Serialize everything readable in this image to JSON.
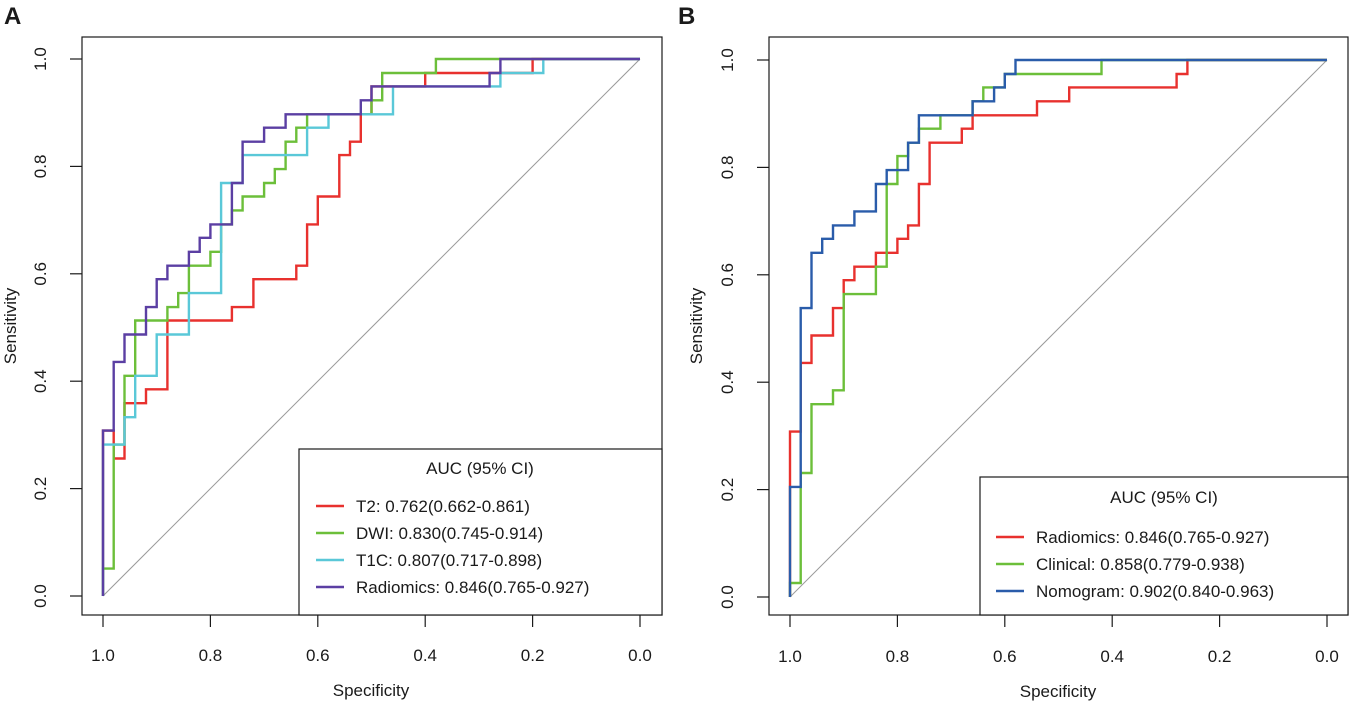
{
  "chart_data": [
    {
      "type": "line",
      "panel_label": "A",
      "xlabel": "Specificity",
      "ylabel": "Sensitivity",
      "xlim": [
        1.0,
        0.0
      ],
      "ylim": [
        0.0,
        1.0
      ],
      "x_ticks": [
        "1.0",
        "0.8",
        "0.6",
        "0.4",
        "0.2",
        "0.0"
      ],
      "y_ticks": [
        "0.0",
        "0.2",
        "0.4",
        "0.6",
        "0.8",
        "1.0"
      ],
      "legend_title": "AUC (95% CI)",
      "legend_position": "bottom-right",
      "reference_line": true,
      "series": [
        {
          "name": "T2",
          "legend_label": "T2: 0.762(0.662-0.861)",
          "color": "#e8312e",
          "points": [
            [
              1.0,
              0.0
            ],
            [
              1.0,
              0.308
            ],
            [
              0.98,
              0.308
            ],
            [
              0.98,
              0.256
            ],
            [
              0.96,
              0.256
            ],
            [
              0.96,
              0.359
            ],
            [
              0.92,
              0.359
            ],
            [
              0.92,
              0.385
            ],
            [
              0.88,
              0.385
            ],
            [
              0.88,
              0.513
            ],
            [
              0.76,
              0.513
            ],
            [
              0.76,
              0.538
            ],
            [
              0.72,
              0.538
            ],
            [
              0.72,
              0.59
            ],
            [
              0.64,
              0.59
            ],
            [
              0.64,
              0.615
            ],
            [
              0.62,
              0.615
            ],
            [
              0.62,
              0.692
            ],
            [
              0.6,
              0.692
            ],
            [
              0.6,
              0.744
            ],
            [
              0.56,
              0.744
            ],
            [
              0.56,
              0.821
            ],
            [
              0.54,
              0.821
            ],
            [
              0.54,
              0.846
            ],
            [
              0.52,
              0.846
            ],
            [
              0.52,
              0.897
            ],
            [
              0.5,
              0.897
            ],
            [
              0.5,
              0.949
            ],
            [
              0.4,
              0.949
            ],
            [
              0.4,
              0.974
            ],
            [
              0.2,
              0.974
            ],
            [
              0.2,
              1.0
            ],
            [
              0.0,
              1.0
            ]
          ]
        },
        {
          "name": "DWI",
          "legend_label": "DWI: 0.830(0.745-0.914)",
          "color": "#6cbf3a",
          "points": [
            [
              1.0,
              0.0
            ],
            [
              1.0,
              0.051
            ],
            [
              0.98,
              0.051
            ],
            [
              0.98,
              0.282
            ],
            [
              0.96,
              0.282
            ],
            [
              0.96,
              0.41
            ],
            [
              0.94,
              0.41
            ],
            [
              0.94,
              0.513
            ],
            [
              0.88,
              0.513
            ],
            [
              0.88,
              0.538
            ],
            [
              0.86,
              0.538
            ],
            [
              0.86,
              0.564
            ],
            [
              0.84,
              0.564
            ],
            [
              0.84,
              0.615
            ],
            [
              0.8,
              0.615
            ],
            [
              0.8,
              0.641
            ],
            [
              0.78,
              0.641
            ],
            [
              0.78,
              0.692
            ],
            [
              0.76,
              0.692
            ],
            [
              0.76,
              0.718
            ],
            [
              0.74,
              0.718
            ],
            [
              0.74,
              0.744
            ],
            [
              0.7,
              0.744
            ],
            [
              0.7,
              0.769
            ],
            [
              0.68,
              0.769
            ],
            [
              0.68,
              0.795
            ],
            [
              0.66,
              0.795
            ],
            [
              0.66,
              0.846
            ],
            [
              0.64,
              0.846
            ],
            [
              0.64,
              0.872
            ],
            [
              0.62,
              0.872
            ],
            [
              0.62,
              0.897
            ],
            [
              0.5,
              0.897
            ],
            [
              0.5,
              0.923
            ],
            [
              0.48,
              0.923
            ],
            [
              0.48,
              0.974
            ],
            [
              0.38,
              0.974
            ],
            [
              0.38,
              1.0
            ],
            [
              0.0,
              1.0
            ]
          ]
        },
        {
          "name": "T1C",
          "legend_label": "T1C: 0.807(0.717-0.898)",
          "color": "#5ac8d8",
          "points": [
            [
              1.0,
              0.0
            ],
            [
              1.0,
              0.282
            ],
            [
              0.96,
              0.282
            ],
            [
              0.96,
              0.333
            ],
            [
              0.94,
              0.333
            ],
            [
              0.94,
              0.41
            ],
            [
              0.9,
              0.41
            ],
            [
              0.9,
              0.487
            ],
            [
              0.84,
              0.487
            ],
            [
              0.84,
              0.564
            ],
            [
              0.78,
              0.564
            ],
            [
              0.78,
              0.769
            ],
            [
              0.74,
              0.769
            ],
            [
              0.74,
              0.821
            ],
            [
              0.62,
              0.821
            ],
            [
              0.62,
              0.872
            ],
            [
              0.58,
              0.872
            ],
            [
              0.58,
              0.897
            ],
            [
              0.46,
              0.897
            ],
            [
              0.46,
              0.949
            ],
            [
              0.26,
              0.949
            ],
            [
              0.26,
              0.974
            ],
            [
              0.18,
              0.974
            ],
            [
              0.18,
              1.0
            ],
            [
              0.0,
              1.0
            ]
          ]
        },
        {
          "name": "Radiomics",
          "legend_label": "Radiomics: 0.846(0.765-0.927)",
          "color": "#5b3fa3",
          "points": [
            [
              1.0,
              0.0
            ],
            [
              1.0,
              0.308
            ],
            [
              0.98,
              0.308
            ],
            [
              0.98,
              0.436
            ],
            [
              0.96,
              0.436
            ],
            [
              0.96,
              0.487
            ],
            [
              0.92,
              0.487
            ],
            [
              0.92,
              0.538
            ],
            [
              0.9,
              0.538
            ],
            [
              0.9,
              0.59
            ],
            [
              0.88,
              0.59
            ],
            [
              0.88,
              0.615
            ],
            [
              0.84,
              0.615
            ],
            [
              0.84,
              0.641
            ],
            [
              0.82,
              0.641
            ],
            [
              0.82,
              0.667
            ],
            [
              0.8,
              0.667
            ],
            [
              0.8,
              0.692
            ],
            [
              0.76,
              0.692
            ],
            [
              0.76,
              0.769
            ],
            [
              0.74,
              0.769
            ],
            [
              0.74,
              0.846
            ],
            [
              0.7,
              0.846
            ],
            [
              0.7,
              0.872
            ],
            [
              0.66,
              0.872
            ],
            [
              0.66,
              0.897
            ],
            [
              0.52,
              0.897
            ],
            [
              0.52,
              0.923
            ],
            [
              0.5,
              0.923
            ],
            [
              0.5,
              0.949
            ],
            [
              0.28,
              0.949
            ],
            [
              0.28,
              0.974
            ],
            [
              0.26,
              0.974
            ],
            [
              0.26,
              1.0
            ],
            [
              0.0,
              1.0
            ]
          ]
        }
      ]
    },
    {
      "type": "line",
      "panel_label": "B",
      "xlabel": "Specificity",
      "ylabel": "Sensitivity",
      "xlim": [
        1.0,
        0.0
      ],
      "ylim": [
        0.0,
        1.0
      ],
      "x_ticks": [
        "1.0",
        "0.8",
        "0.6",
        "0.4",
        "0.2",
        "0.0"
      ],
      "y_ticks": [
        "0.0",
        "0.2",
        "0.4",
        "0.6",
        "0.8",
        "1.0"
      ],
      "legend_title": "AUC (95% CI)",
      "legend_position": "bottom-right",
      "reference_line": true,
      "series": [
        {
          "name": "Radiomics",
          "legend_label": "Radiomics: 0.846(0.765-0.927)",
          "color": "#e8312e",
          "points": [
            [
              1.0,
              0.0
            ],
            [
              1.0,
              0.308
            ],
            [
              0.98,
              0.308
            ],
            [
              0.98,
              0.436
            ],
            [
              0.96,
              0.436
            ],
            [
              0.96,
              0.487
            ],
            [
              0.92,
              0.487
            ],
            [
              0.92,
              0.538
            ],
            [
              0.9,
              0.538
            ],
            [
              0.9,
              0.59
            ],
            [
              0.88,
              0.59
            ],
            [
              0.88,
              0.615
            ],
            [
              0.84,
              0.615
            ],
            [
              0.84,
              0.641
            ],
            [
              0.8,
              0.641
            ],
            [
              0.8,
              0.667
            ],
            [
              0.78,
              0.667
            ],
            [
              0.78,
              0.692
            ],
            [
              0.76,
              0.692
            ],
            [
              0.76,
              0.769
            ],
            [
              0.74,
              0.769
            ],
            [
              0.74,
              0.846
            ],
            [
              0.68,
              0.846
            ],
            [
              0.68,
              0.872
            ],
            [
              0.66,
              0.872
            ],
            [
              0.66,
              0.897
            ],
            [
              0.54,
              0.897
            ],
            [
              0.54,
              0.923
            ],
            [
              0.48,
              0.923
            ],
            [
              0.48,
              0.949
            ],
            [
              0.28,
              0.949
            ],
            [
              0.28,
              0.974
            ],
            [
              0.26,
              0.974
            ],
            [
              0.26,
              1.0
            ],
            [
              0.0,
              1.0
            ]
          ]
        },
        {
          "name": "Clinical",
          "legend_label": "Clinical: 0.858(0.779-0.938)",
          "color": "#6cbf3a",
          "points": [
            [
              1.0,
              0.0
            ],
            [
              1.0,
              0.026
            ],
            [
              0.98,
              0.026
            ],
            [
              0.98,
              0.231
            ],
            [
              0.96,
              0.231
            ],
            [
              0.96,
              0.359
            ],
            [
              0.92,
              0.359
            ],
            [
              0.92,
              0.385
            ],
            [
              0.9,
              0.385
            ],
            [
              0.9,
              0.564
            ],
            [
              0.84,
              0.564
            ],
            [
              0.84,
              0.615
            ],
            [
              0.82,
              0.615
            ],
            [
              0.82,
              0.769
            ],
            [
              0.8,
              0.769
            ],
            [
              0.8,
              0.821
            ],
            [
              0.78,
              0.821
            ],
            [
              0.78,
              0.846
            ],
            [
              0.76,
              0.846
            ],
            [
              0.76,
              0.872
            ],
            [
              0.72,
              0.872
            ],
            [
              0.72,
              0.897
            ],
            [
              0.66,
              0.897
            ],
            [
              0.66,
              0.923
            ],
            [
              0.64,
              0.923
            ],
            [
              0.64,
              0.949
            ],
            [
              0.6,
              0.949
            ],
            [
              0.6,
              0.974
            ],
            [
              0.42,
              0.974
            ],
            [
              0.42,
              1.0
            ],
            [
              0.0,
              1.0
            ]
          ]
        },
        {
          "name": "Nomogram",
          "legend_label": "Nomogram: 0.902(0.840-0.963)",
          "color": "#2a5caa",
          "points": [
            [
              1.0,
              0.0
            ],
            [
              1.0,
              0.205
            ],
            [
              0.98,
              0.205
            ],
            [
              0.98,
              0.538
            ],
            [
              0.96,
              0.538
            ],
            [
              0.96,
              0.641
            ],
            [
              0.94,
              0.641
            ],
            [
              0.94,
              0.667
            ],
            [
              0.92,
              0.667
            ],
            [
              0.92,
              0.692
            ],
            [
              0.88,
              0.692
            ],
            [
              0.88,
              0.718
            ],
            [
              0.84,
              0.718
            ],
            [
              0.84,
              0.769
            ],
            [
              0.82,
              0.769
            ],
            [
              0.82,
              0.795
            ],
            [
              0.78,
              0.795
            ],
            [
              0.78,
              0.846
            ],
            [
              0.76,
              0.846
            ],
            [
              0.76,
              0.897
            ],
            [
              0.66,
              0.897
            ],
            [
              0.66,
              0.923
            ],
            [
              0.62,
              0.923
            ],
            [
              0.62,
              0.949
            ],
            [
              0.6,
              0.949
            ],
            [
              0.6,
              0.974
            ],
            [
              0.58,
              0.974
            ],
            [
              0.58,
              1.0
            ],
            [
              0.0,
              1.0
            ]
          ]
        }
      ]
    }
  ]
}
